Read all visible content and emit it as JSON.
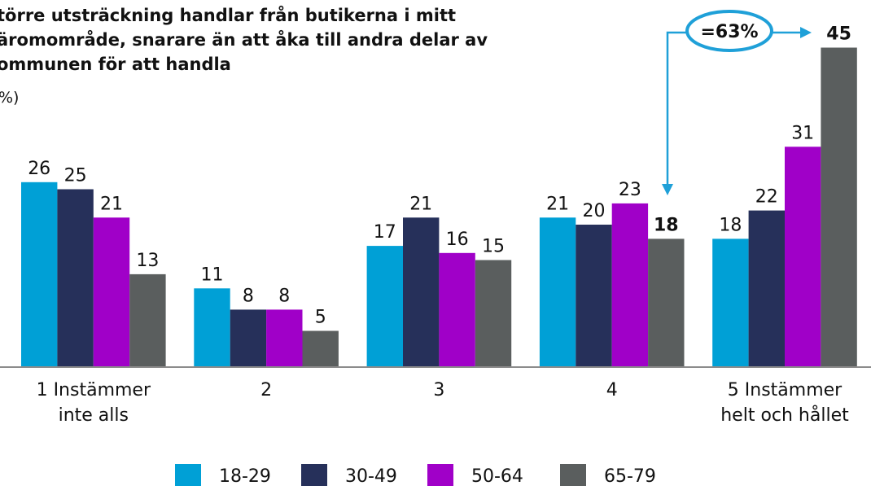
{
  "chart_data": {
    "type": "bar",
    "title": [
      "törre utsträckning handlar från butikerna i mitt",
      "äromområde, snarare än att åka till andra delar av",
      "ommunen för att handla"
    ],
    "subtitle": "%)",
    "annotation": "=63%",
    "categories": [
      [
        "1 Instämmer",
        "inte alls"
      ],
      [
        "2"
      ],
      [
        "3"
      ],
      [
        "4"
      ],
      [
        "5 Instämmer",
        "helt och hållet"
      ]
    ],
    "series": [
      {
        "name": "18-29",
        "color": "#00a0d6",
        "values": [
          26,
          11,
          17,
          21,
          18
        ]
      },
      {
        "name": "30-49",
        "color": "#26305a",
        "values": [
          25,
          8,
          21,
          20,
          22
        ]
      },
      {
        "name": "50-64",
        "color": "#a000c8",
        "values": [
          21,
          8,
          16,
          23,
          31
        ]
      },
      {
        "name": "65-79",
        "color": "#5a5e5e",
        "values": [
          13,
          5,
          15,
          18,
          45
        ],
        "bold": [
          false,
          false,
          false,
          true,
          true
        ]
      }
    ],
    "legend": "bottom"
  }
}
